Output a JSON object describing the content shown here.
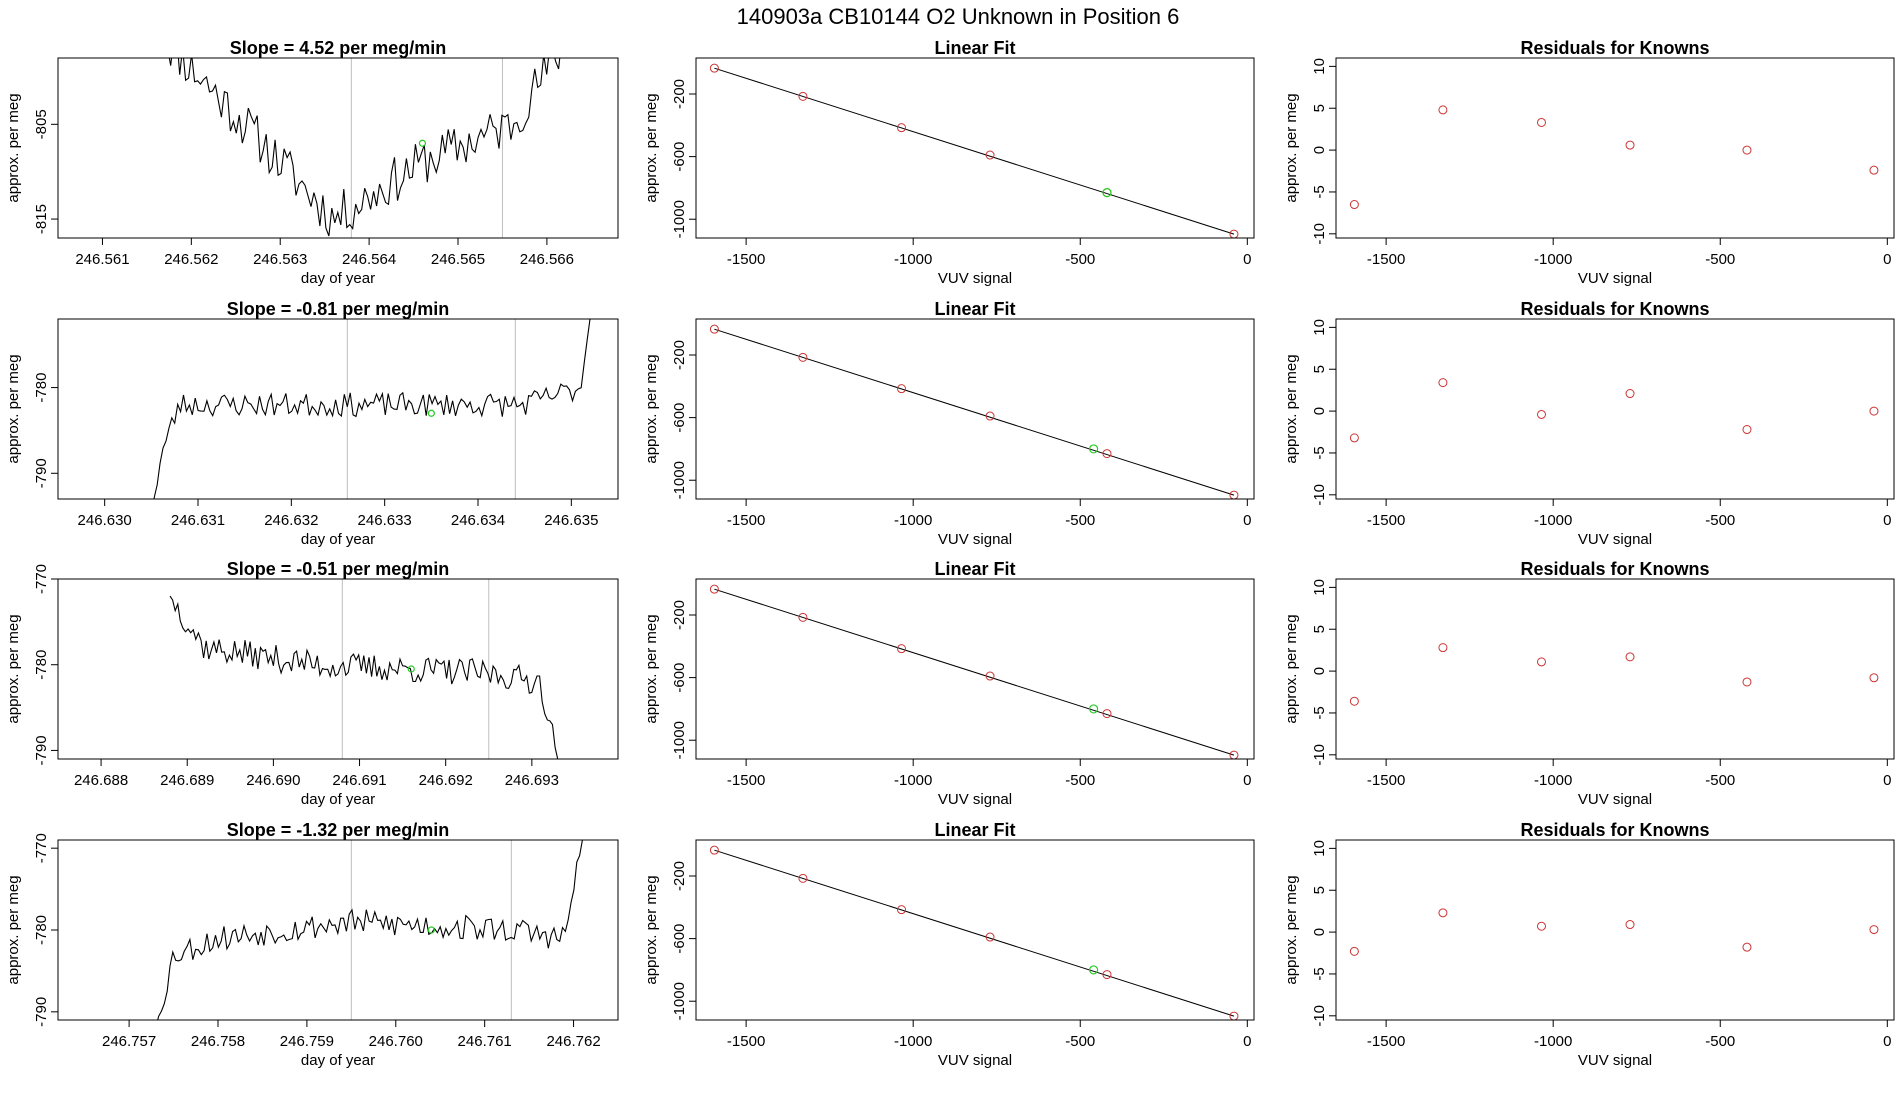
{
  "figure": {
    "title": "140903a      CB10144    O2 Unknown in Position  6",
    "colors": {
      "line": "#000000",
      "known_points": "#cd3333",
      "unknown_points": "#22cc22",
      "vertical_markers": "#bebebe"
    }
  },
  "chart_data": [
    {
      "type": "line",
      "panel": "time-series-1",
      "title": "Slope =  4.52  per meg/min",
      "xlabel": "day of year",
      "ylabel": "approx. per meg",
      "xlim": [
        246.5605,
        246.5668
      ],
      "ylim": [
        -817,
        -798
      ],
      "xticks": [
        246.561,
        246.562,
        246.563,
        246.564,
        246.565,
        246.566
      ],
      "xtick_labels": [
        "246.561",
        "246.562",
        "246.563",
        "246.564",
        "246.565",
        "246.566"
      ],
      "yticks": [
        -805,
        -815
      ],
      "ytick_labels": [
        "-805",
        "-815"
      ],
      "vlines": [
        246.5638,
        246.5655
      ],
      "unknown_point": {
        "x": 246.5646,
        "y": -807
      },
      "series_x": [
        246.5616,
        246.5626,
        246.5636,
        246.5646,
        246.5656,
        246.5663
      ],
      "series": [
        -795,
        -805,
        -815,
        -809,
        -805,
        -795
      ],
      "noise": 2.5,
      "steps": 140,
      "seed": 11
    },
    {
      "type": "scatter",
      "panel": "linear-fit-1",
      "title": "Linear Fit",
      "xlabel": "VUV signal",
      "ylabel": "approx. per meg",
      "xlim": [
        -1650,
        20
      ],
      "ylim": [
        -1120,
        30
      ],
      "xticks": [
        -1500,
        -1000,
        -500,
        0
      ],
      "xtick_labels": [
        "-1500",
        "-1000",
        "-500",
        "0"
      ],
      "yticks": [
        -200,
        -600,
        -1000
      ],
      "ytick_labels": [
        "-200",
        "-600",
        "-1000"
      ],
      "fit_line": {
        "x": [
          -1595,
          -40
        ],
        "y": [
          -35,
          -1095
        ]
      },
      "known_points": {
        "x": [
          -1595,
          -1330,
          -1035,
          -770,
          -420,
          -40
        ],
        "y": [
          -35,
          -215,
          -415,
          -590,
          -830,
          -1095
        ]
      },
      "unknown_points": {
        "x": [
          -420
        ],
        "y": [
          -830
        ]
      }
    },
    {
      "type": "scatter",
      "panel": "residuals-1",
      "title": "Residuals for Knowns",
      "xlabel": "VUV signal",
      "ylabel": "approx. per meg",
      "xlim": [
        -1650,
        20
      ],
      "ylim": [
        -10.5,
        11
      ],
      "xticks": [
        -1500,
        -1000,
        -500,
        0
      ],
      "xtick_labels": [
        "-1500",
        "-1000",
        "-500",
        "0"
      ],
      "yticks": [
        10,
        5,
        0,
        -5,
        -10
      ],
      "ytick_labels": [
        "10",
        "5",
        "0",
        "-5",
        "-10"
      ],
      "points": {
        "x": [
          -1595,
          -1330,
          -1035,
          -770,
          -420,
          -40
        ],
        "y": [
          -6.5,
          4.8,
          3.3,
          0.6,
          0.0,
          -2.4
        ]
      }
    },
    {
      "type": "line",
      "panel": "time-series-2",
      "title": "Slope =  -0.81  per meg/min",
      "xlabel": "day of year",
      "ylabel": "approx. per meg",
      "xlim": [
        246.6295,
        246.6355
      ],
      "ylim": [
        -793,
        -772
      ],
      "xticks": [
        246.63,
        246.631,
        246.632,
        246.633,
        246.634,
        246.635
      ],
      "xtick_labels": [
        "246.630",
        "246.631",
        "246.632",
        "246.633",
        "246.634",
        "246.635"
      ],
      "yticks": [
        -780,
        -790
      ],
      "ytick_labels": [
        "-780",
        "-790"
      ],
      "vlines": [
        246.6326,
        246.6344
      ],
      "unknown_point": {
        "x": 246.6335,
        "y": -783
      },
      "series_x": [
        246.6305,
        246.6306,
        246.6308,
        246.6325,
        246.6345,
        246.6351,
        246.6352
      ],
      "series": [
        -795,
        -788,
        -782,
        -782,
        -782,
        -780,
        -772
      ],
      "noise": 1.4,
      "steps": 150,
      "seed": 23
    },
    {
      "type": "scatter",
      "panel": "linear-fit-2",
      "title": "Linear Fit",
      "xlabel": "VUV signal",
      "ylabel": "approx. per meg",
      "xlim": [
        -1650,
        20
      ],
      "ylim": [
        -1120,
        30
      ],
      "xticks": [
        -1500,
        -1000,
        -500,
        0
      ],
      "xtick_labels": [
        "-1500",
        "-1000",
        "-500",
        "0"
      ],
      "yticks": [
        -200,
        -600,
        -1000
      ],
      "ytick_labels": [
        "-200",
        "-600",
        "-1000"
      ],
      "fit_line": {
        "x": [
          -1595,
          -40
        ],
        "y": [
          -35,
          -1095
        ]
      },
      "known_points": {
        "x": [
          -1595,
          -1330,
          -1035,
          -770,
          -420,
          -40
        ],
        "y": [
          -35,
          -215,
          -415,
          -590,
          -830,
          -1095
        ]
      },
      "unknown_points": {
        "x": [
          -460
        ],
        "y": [
          -800
        ]
      }
    },
    {
      "type": "scatter",
      "panel": "residuals-2",
      "title": "Residuals for Knowns",
      "xlabel": "VUV signal",
      "ylabel": "approx. per meg",
      "xlim": [
        -1650,
        20
      ],
      "ylim": [
        -10.5,
        11
      ],
      "xticks": [
        -1500,
        -1000,
        -500,
        0
      ],
      "xtick_labels": [
        "-1500",
        "-1000",
        "-500",
        "0"
      ],
      "yticks": [
        10,
        5,
        0,
        -5,
        -10
      ],
      "ytick_labels": [
        "10",
        "5",
        "0",
        "-5",
        "-10"
      ],
      "points": {
        "x": [
          -1595,
          -1330,
          -1035,
          -770,
          -420,
          -40
        ],
        "y": [
          -3.2,
          3.4,
          -0.4,
          2.1,
          -2.2,
          0.0
        ]
      }
    },
    {
      "type": "line",
      "panel": "time-series-3",
      "title": "Slope =  -0.51  per meg/min",
      "xlabel": "day of year",
      "ylabel": "approx. per meg",
      "xlim": [
        246.6875,
        246.694
      ],
      "ylim": [
        -791,
        -770
      ],
      "xticks": [
        246.688,
        246.689,
        246.69,
        246.691,
        246.692,
        246.693
      ],
      "xtick_labels": [
        "246.688",
        "246.689",
        "246.690",
        "246.691",
        "246.692",
        "246.693"
      ],
      "yticks": [
        -770,
        -780,
        -790
      ],
      "ytick_labels": [
        "-770",
        "-780",
        "-790"
      ],
      "vlines": [
        246.6908,
        246.6925
      ],
      "unknown_point": {
        "x": 246.6916,
        "y": -780.5
      },
      "series_x": [
        246.6888,
        246.6892,
        246.6905,
        246.6925,
        246.6931,
        246.6933
      ],
      "series": [
        -772,
        -778,
        -780,
        -781,
        -782,
        -791
      ],
      "noise": 1.6,
      "steps": 150,
      "seed": 37
    },
    {
      "type": "scatter",
      "panel": "linear-fit-3",
      "title": "Linear Fit",
      "xlabel": "VUV signal",
      "ylabel": "approx. per meg",
      "xlim": [
        -1650,
        20
      ],
      "ylim": [
        -1120,
        30
      ],
      "xticks": [
        -1500,
        -1000,
        -500,
        0
      ],
      "xtick_labels": [
        "-1500",
        "-1000",
        "-500",
        "0"
      ],
      "yticks": [
        -200,
        -600,
        -1000
      ],
      "ytick_labels": [
        "-200",
        "-600",
        "-1000"
      ],
      "fit_line": {
        "x": [
          -1595,
          -40
        ],
        "y": [
          -35,
          -1095
        ]
      },
      "known_points": {
        "x": [
          -1595,
          -1330,
          -1035,
          -770,
          -420,
          -40
        ],
        "y": [
          -35,
          -215,
          -415,
          -590,
          -830,
          -1095
        ]
      },
      "unknown_points": {
        "x": [
          -460
        ],
        "y": [
          -800
        ]
      }
    },
    {
      "type": "scatter",
      "panel": "residuals-3",
      "title": "Residuals for Knowns",
      "xlabel": "VUV signal",
      "ylabel": "approx. per meg",
      "xlim": [
        -1650,
        20
      ],
      "ylim": [
        -10.5,
        11
      ],
      "xticks": [
        -1500,
        -1000,
        -500,
        0
      ],
      "xtick_labels": [
        "-1500",
        "-1000",
        "-500",
        "0"
      ],
      "yticks": [
        10,
        5,
        0,
        -5,
        -10
      ],
      "ytick_labels": [
        "10",
        "5",
        "0",
        "-5",
        "-10"
      ],
      "points": {
        "x": [
          -1595,
          -1330,
          -1035,
          -770,
          -420,
          -40
        ],
        "y": [
          -3.6,
          2.8,
          1.1,
          1.7,
          -1.3,
          -0.8
        ]
      }
    },
    {
      "type": "line",
      "panel": "time-series-4",
      "title": "Slope =  -1.32  per meg/min",
      "xlabel": "day of year",
      "ylabel": "approx. per meg",
      "xlim": [
        246.7562,
        246.7625
      ],
      "ylim": [
        -791,
        -769
      ],
      "xticks": [
        246.757,
        246.758,
        246.759,
        246.76,
        246.761,
        246.762
      ],
      "xtick_labels": [
        "246.757",
        "246.758",
        "246.759",
        "246.760",
        "246.761",
        "246.762"
      ],
      "yticks": [
        -770,
        -780,
        -790
      ],
      "ytick_labels": [
        "-770",
        "-780",
        "-790"
      ],
      "vlines": [
        246.7595,
        246.7613
      ],
      "unknown_point": {
        "x": 246.7604,
        "y": -780
      },
      "series_x": [
        246.7573,
        246.7575,
        246.758,
        246.7595,
        246.7613,
        246.7619,
        246.7621
      ],
      "series": [
        -792,
        -783,
        -781,
        -779,
        -780,
        -781,
        -769
      ],
      "noise": 1.6,
      "steps": 150,
      "seed": 53
    },
    {
      "type": "scatter",
      "panel": "linear-fit-4",
      "title": "Linear Fit",
      "xlabel": "VUV signal",
      "ylabel": "approx. per meg",
      "xlim": [
        -1650,
        20
      ],
      "ylim": [
        -1120,
        30
      ],
      "xticks": [
        -1500,
        -1000,
        -500,
        0
      ],
      "xtick_labels": [
        "-1500",
        "-1000",
        "-500",
        "0"
      ],
      "yticks": [
        -200,
        -600,
        -1000
      ],
      "ytick_labels": [
        "-200",
        "-600",
        "-1000"
      ],
      "fit_line": {
        "x": [
          -1595,
          -40
        ],
        "y": [
          -35,
          -1095
        ]
      },
      "known_points": {
        "x": [
          -1595,
          -1330,
          -1035,
          -770,
          -420,
          -40
        ],
        "y": [
          -35,
          -215,
          -415,
          -590,
          -830,
          -1095
        ]
      },
      "unknown_points": {
        "x": [
          -460
        ],
        "y": [
          -800
        ]
      }
    },
    {
      "type": "scatter",
      "panel": "residuals-4",
      "title": "Residuals for Knowns",
      "xlabel": "VUV signal",
      "ylabel": "approx. per meg",
      "xlim": [
        -1650,
        20
      ],
      "ylim": [
        -10.5,
        11
      ],
      "xticks": [
        -1500,
        -1000,
        -500,
        0
      ],
      "xtick_labels": [
        "-1500",
        "-1000",
        "-500",
        "0"
      ],
      "yticks": [
        10,
        5,
        0,
        -5,
        -10
      ],
      "ytick_labels": [
        "10",
        "5",
        "0",
        "-5",
        "-10"
      ],
      "points": {
        "x": [
          -1595,
          -1330,
          -1035,
          -770,
          -420,
          -40
        ],
        "y": [
          -2.3,
          2.3,
          0.7,
          0.9,
          -1.8,
          0.3
        ]
      }
    }
  ]
}
